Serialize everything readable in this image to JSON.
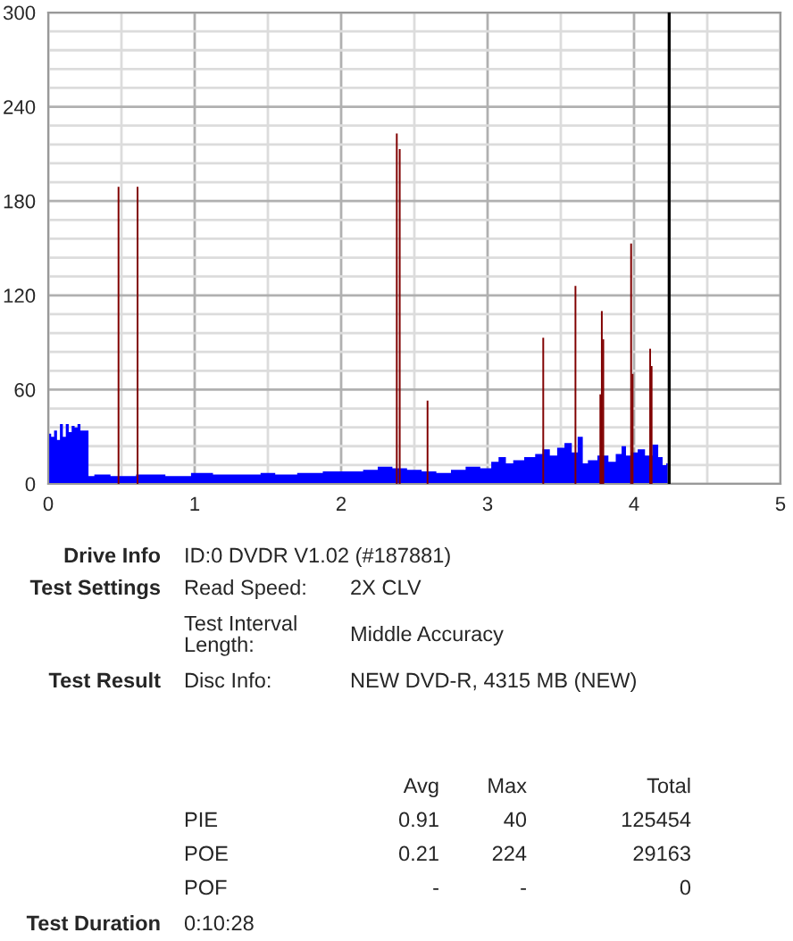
{
  "chart_data": {
    "type": "area",
    "xlim": [
      0,
      5
    ],
    "ylim": [
      0,
      300
    ],
    "xticks": [
      0,
      1,
      2,
      3,
      4,
      5
    ],
    "yticks": [
      0,
      60,
      120,
      180,
      240,
      300
    ],
    "grid": true,
    "series": [
      {
        "color": "#0000ff",
        "x": [
          0.0,
          0.01,
          0.03,
          0.05,
          0.07,
          0.09,
          0.11,
          0.13,
          0.15,
          0.17,
          0.19,
          0.21,
          0.23,
          0.27,
          0.28,
          0.35,
          0.5,
          0.7,
          0.9,
          1.05,
          1.2,
          1.4,
          1.5,
          1.6,
          1.8,
          1.95,
          2.1,
          2.2,
          2.3,
          2.4,
          2.5,
          2.6,
          2.7,
          2.8,
          2.9,
          3.0,
          3.05,
          3.1,
          3.15,
          3.2,
          3.3,
          3.35,
          3.4,
          3.45,
          3.5,
          3.55,
          3.6,
          3.63,
          3.67,
          3.7,
          3.8,
          3.85,
          3.9,
          3.93,
          3.96,
          4.0,
          4.05,
          4.1,
          4.15,
          4.18,
          4.21,
          4.23
        ],
        "values": [
          22,
          32,
          30,
          34,
          28,
          38,
          30,
          38,
          33,
          37,
          36,
          38,
          34,
          34,
          5,
          6,
          5,
          6,
          5,
          7,
          6,
          6,
          7,
          6,
          7,
          8,
          8,
          9,
          11,
          10,
          9,
          8,
          7,
          9,
          11,
          10,
          14,
          17,
          13,
          15,
          17,
          19,
          22,
          18,
          23,
          26,
          20,
          30,
          13,
          15,
          18,
          14,
          19,
          24,
          18,
          20,
          22,
          18,
          25,
          17,
          12,
          13
        ]
      },
      {
        "type": "bar",
        "color": "#800000",
        "x": [
          0.48,
          0.61,
          2.38,
          2.4,
          2.59,
          3.38,
          3.6,
          3.77,
          3.78,
          3.79,
          3.98,
          3.99,
          4.11,
          4.12
        ],
        "values": [
          189,
          189,
          223,
          213,
          53,
          93,
          126,
          57,
          110,
          92,
          153,
          70,
          86,
          75
        ]
      }
    ],
    "ref_lines": [
      {
        "axis": "x",
        "value": 4.24,
        "color": "#000000"
      }
    ],
    "annotations": [
      "Drive Info",
      "ID:0 DVDR V1.02 (#187881)",
      "Test Settings",
      "Read Speed:",
      "2X CLV",
      "Test Interval\nLength:",
      "Middle Accuracy",
      "Test Result",
      "Disc Info:",
      "NEW DVD-R, 4315 MB (NEW)",
      "Avg",
      "Max",
      "Total",
      "PIE",
      "0.91",
      "40",
      "125454",
      "POE",
      "0.21",
      "224",
      "29163",
      "POF",
      "-",
      "-",
      "0",
      "Test Duration",
      "0:10:28"
    ]
  }
}
